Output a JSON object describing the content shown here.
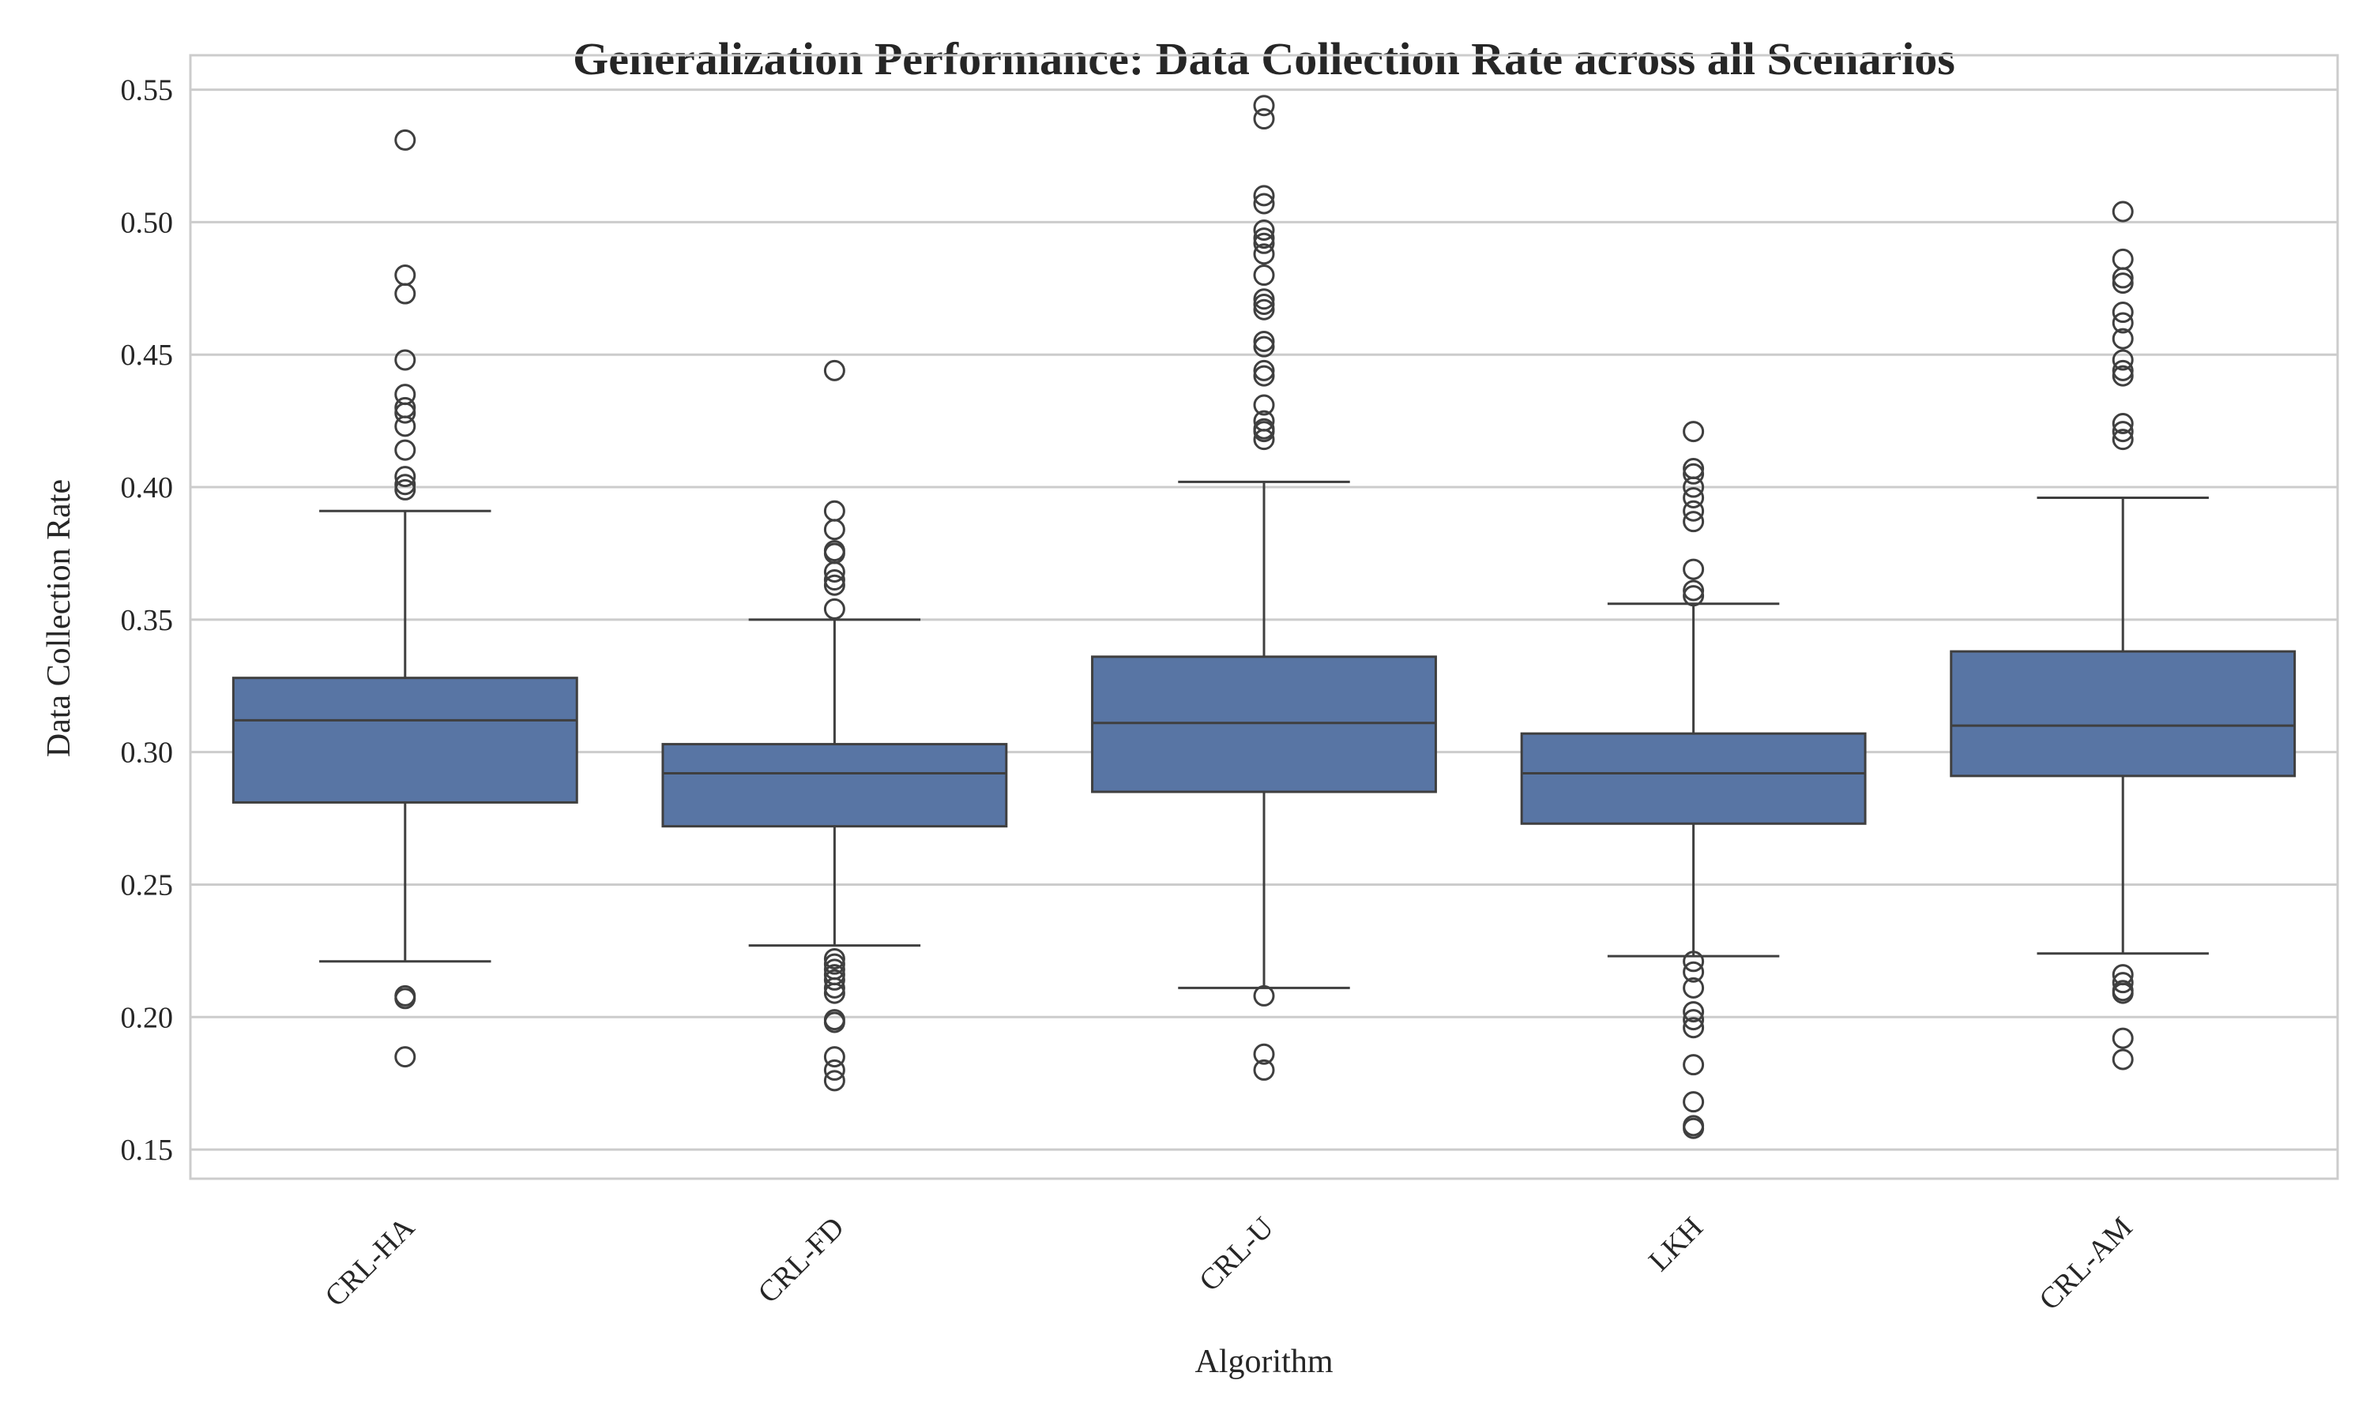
{
  "chart_data": {
    "type": "box",
    "title": "Generalization Performance: Data Collection Rate across all Scenarios",
    "xlabel": "Algorithm",
    "ylabel": "Data Collection Rate",
    "ylim": [
      0.139,
      0.563
    ],
    "yticks": [
      "0.15",
      "0.20",
      "0.25",
      "0.30",
      "0.35",
      "0.40",
      "0.45",
      "0.50",
      "0.55"
    ],
    "grid": true,
    "categories": [
      "CRL-HA",
      "CRL-FD",
      "CRL-U",
      "LKH",
      "CRL-AM"
    ],
    "series": [
      {
        "category": "CRL-HA",
        "whisker_low": 0.221,
        "q1": 0.281,
        "median": 0.312,
        "q3": 0.328,
        "whisker_high": 0.391,
        "outliers": [
          0.531,
          0.48,
          0.473,
          0.448,
          0.435,
          0.43,
          0.428,
          0.423,
          0.414,
          0.404,
          0.401,
          0.399,
          0.208,
          0.207,
          0.185
        ]
      },
      {
        "category": "CRL-FD",
        "whisker_low": 0.227,
        "q1": 0.272,
        "median": 0.292,
        "q3": 0.303,
        "whisker_high": 0.35,
        "outliers": [
          0.444,
          0.391,
          0.384,
          0.376,
          0.375,
          0.368,
          0.365,
          0.363,
          0.354,
          0.222,
          0.22,
          0.218,
          0.216,
          0.214,
          0.211,
          0.209,
          0.199,
          0.198,
          0.185,
          0.18,
          0.176
        ]
      },
      {
        "category": "CRL-U",
        "whisker_low": 0.211,
        "q1": 0.285,
        "median": 0.311,
        "q3": 0.336,
        "whisker_high": 0.402,
        "outliers": [
          0.544,
          0.539,
          0.51,
          0.507,
          0.497,
          0.494,
          0.492,
          0.488,
          0.48,
          0.471,
          0.469,
          0.467,
          0.455,
          0.453,
          0.444,
          0.442,
          0.431,
          0.425,
          0.422,
          0.421,
          0.418,
          0.208,
          0.186,
          0.18
        ]
      },
      {
        "category": "LKH",
        "whisker_low": 0.223,
        "q1": 0.273,
        "median": 0.292,
        "q3": 0.307,
        "whisker_high": 0.356,
        "outliers": [
          0.421,
          0.407,
          0.405,
          0.4,
          0.396,
          0.391,
          0.387,
          0.369,
          0.361,
          0.359,
          0.221,
          0.217,
          0.211,
          0.202,
          0.199,
          0.196,
          0.182,
          0.168,
          0.159,
          0.158
        ]
      },
      {
        "category": "CRL-AM",
        "whisker_low": 0.224,
        "q1": 0.291,
        "median": 0.31,
        "q3": 0.338,
        "whisker_high": 0.396,
        "outliers": [
          0.504,
          0.486,
          0.479,
          0.477,
          0.466,
          0.462,
          0.456,
          0.448,
          0.444,
          0.442,
          0.424,
          0.421,
          0.418,
          0.216,
          0.213,
          0.21,
          0.209,
          0.192,
          0.184
        ]
      }
    ],
    "colors": {
      "box_fill": "#5875a4",
      "line": "#3f3f3f",
      "grid": "#cccccc",
      "frame": "#cccccc",
      "text": "#262626",
      "background": "#ffffff"
    }
  }
}
